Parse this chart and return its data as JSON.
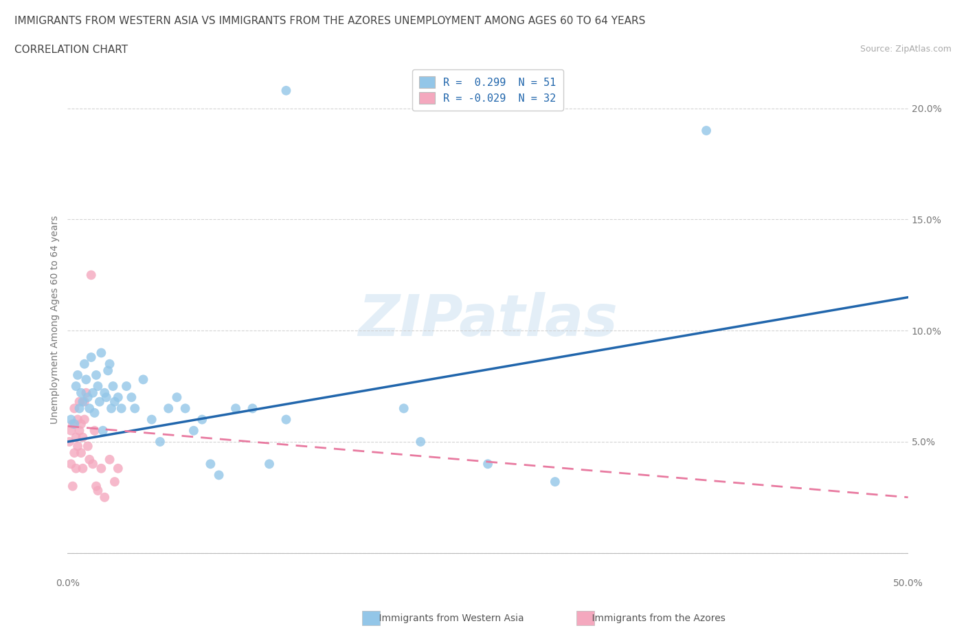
{
  "title_line1": "IMMIGRANTS FROM WESTERN ASIA VS IMMIGRANTS FROM THE AZORES UNEMPLOYMENT AMONG AGES 60 TO 64 YEARS",
  "title_line2": "CORRELATION CHART",
  "source_text": "Source: ZipAtlas.com",
  "ylabel": "Unemployment Among Ages 60 to 64 years",
  "xlim": [
    0.0,
    0.5
  ],
  "ylim": [
    -0.01,
    0.22
  ],
  "xtick_vals": [
    0.0,
    0.1,
    0.2,
    0.3,
    0.4,
    0.5
  ],
  "xtick_labels": [
    "0.0%",
    "",
    "",
    "",
    "",
    "50.0%"
  ],
  "ytick_vals": [
    0.0,
    0.05,
    0.1,
    0.15,
    0.2
  ],
  "ytick_labels": [
    "",
    "5.0%",
    "10.0%",
    "15.0%",
    "20.0%"
  ],
  "legend_r1": "R =  0.299  N = 51",
  "legend_r2": "R = -0.029  N = 32",
  "color_blue": "#93c6e8",
  "color_pink": "#f4a8be",
  "line_color_blue": "#2166ac",
  "line_color_pink": "#e87aa0",
  "watermark": "ZIPatlas",
  "background_color": "#ffffff",
  "grid_color": "#d0d0d0",
  "blue_line_x0": 0.0,
  "blue_line_y0": 0.05,
  "blue_line_x1": 0.5,
  "blue_line_y1": 0.115,
  "pink_line_x0": 0.0,
  "pink_line_y0": 0.057,
  "pink_line_x1": 0.5,
  "pink_line_y1": 0.025,
  "western_asia_x": [
    0.002,
    0.004,
    0.005,
    0.006,
    0.007,
    0.008,
    0.009,
    0.01,
    0.011,
    0.012,
    0.013,
    0.014,
    0.015,
    0.016,
    0.017,
    0.018,
    0.019,
    0.02,
    0.021,
    0.022,
    0.023,
    0.024,
    0.025,
    0.026,
    0.027,
    0.028,
    0.03,
    0.032,
    0.035,
    0.038,
    0.04,
    0.045,
    0.05,
    0.055,
    0.06,
    0.065,
    0.07,
    0.075,
    0.08,
    0.085,
    0.09,
    0.1,
    0.11,
    0.12,
    0.13,
    0.2,
    0.21,
    0.25,
    0.29,
    0.38,
    0.13
  ],
  "western_asia_y": [
    0.06,
    0.058,
    0.075,
    0.08,
    0.065,
    0.072,
    0.068,
    0.085,
    0.078,
    0.07,
    0.065,
    0.088,
    0.072,
    0.063,
    0.08,
    0.075,
    0.068,
    0.09,
    0.055,
    0.072,
    0.07,
    0.082,
    0.085,
    0.065,
    0.075,
    0.068,
    0.07,
    0.065,
    0.075,
    0.07,
    0.065,
    0.078,
    0.06,
    0.05,
    0.065,
    0.07,
    0.065,
    0.055,
    0.06,
    0.04,
    0.035,
    0.065,
    0.065,
    0.04,
    0.06,
    0.065,
    0.05,
    0.04,
    0.032,
    0.19,
    0.208
  ],
  "azores_x": [
    0.001,
    0.002,
    0.002,
    0.003,
    0.003,
    0.004,
    0.004,
    0.005,
    0.005,
    0.006,
    0.006,
    0.007,
    0.007,
    0.008,
    0.008,
    0.009,
    0.009,
    0.01,
    0.01,
    0.011,
    0.012,
    0.013,
    0.014,
    0.015,
    0.016,
    0.017,
    0.018,
    0.02,
    0.022,
    0.025,
    0.028,
    0.03
  ],
  "azores_y": [
    0.05,
    0.055,
    0.04,
    0.058,
    0.03,
    0.065,
    0.045,
    0.052,
    0.038,
    0.06,
    0.048,
    0.055,
    0.068,
    0.045,
    0.058,
    0.052,
    0.038,
    0.06,
    0.068,
    0.072,
    0.048,
    0.042,
    0.125,
    0.04,
    0.055,
    0.03,
    0.028,
    0.038,
    0.025,
    0.042,
    0.032,
    0.038
  ],
  "title_fontsize": 11,
  "label_fontsize": 10,
  "tick_fontsize": 10,
  "legend_fontsize": 11,
  "source_fontsize": 9
}
